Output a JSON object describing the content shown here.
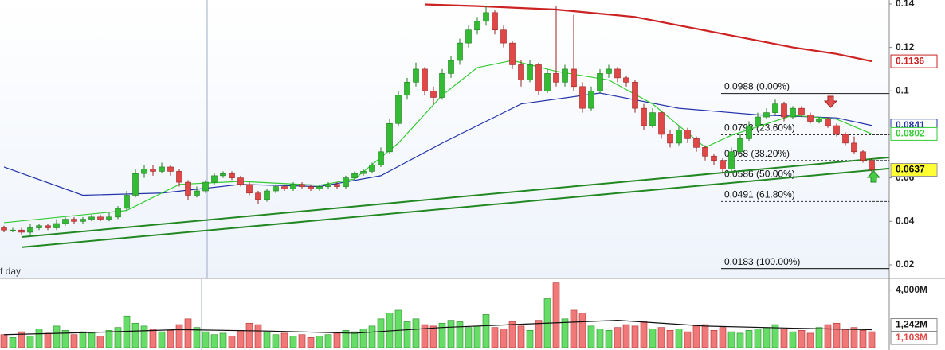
{
  "chart_data": {
    "type": "candlestick",
    "period_label": "f day",
    "up_color": "#33bb33",
    "down_color": "#e04848",
    "price_tag_color": "#ffff33",
    "ylim": [
      0.0145,
      0.1418
    ],
    "yticks": [
      0.02,
      0.04,
      0.06,
      0.08,
      0.1,
      0.12,
      0.14
    ],
    "candles": [
      [
        0.037,
        0.038,
        0.035,
        0.036
      ],
      [
        0.036,
        0.037,
        0.035,
        0.036
      ],
      [
        0.036,
        0.037,
        0.034,
        0.035
      ],
      [
        0.035,
        0.039,
        0.034,
        0.037
      ],
      [
        0.037,
        0.039,
        0.036,
        0.038
      ],
      [
        0.038,
        0.039,
        0.036,
        0.037
      ],
      [
        0.037,
        0.041,
        0.036,
        0.039
      ],
      [
        0.039,
        0.042,
        0.038,
        0.041
      ],
      [
        0.041,
        0.042,
        0.039,
        0.04
      ],
      [
        0.04,
        0.042,
        0.039,
        0.041
      ],
      [
        0.041,
        0.043,
        0.04,
        0.042
      ],
      [
        0.042,
        0.043,
        0.04,
        0.041
      ],
      [
        0.041,
        0.044,
        0.04,
        0.042
      ],
      [
        0.042,
        0.047,
        0.041,
        0.046
      ],
      [
        0.046,
        0.054,
        0.045,
        0.052
      ],
      [
        0.052,
        0.064,
        0.051,
        0.062
      ],
      [
        0.062,
        0.066,
        0.06,
        0.064
      ],
      [
        0.064,
        0.066,
        0.061,
        0.063
      ],
      [
        0.063,
        0.067,
        0.062,
        0.065
      ],
      [
        0.065,
        0.066,
        0.061,
        0.063
      ],
      [
        0.063,
        0.064,
        0.056,
        0.058
      ],
      [
        0.058,
        0.059,
        0.05,
        0.052
      ],
      [
        0.052,
        0.056,
        0.051,
        0.054
      ],
      [
        0.054,
        0.059,
        0.053,
        0.058
      ],
      [
        0.058,
        0.062,
        0.057,
        0.061
      ],
      [
        0.061,
        0.063,
        0.06,
        0.062
      ],
      [
        0.062,
        0.063,
        0.059,
        0.06
      ],
      [
        0.06,
        0.061,
        0.056,
        0.057
      ],
      [
        0.057,
        0.058,
        0.052,
        0.053
      ],
      [
        0.053,
        0.054,
        0.048,
        0.05
      ],
      [
        0.05,
        0.055,
        0.049,
        0.054
      ],
      [
        0.054,
        0.057,
        0.053,
        0.056
      ],
      [
        0.056,
        0.057,
        0.054,
        0.055
      ],
      [
        0.055,
        0.058,
        0.054,
        0.057
      ],
      [
        0.057,
        0.058,
        0.055,
        0.056
      ],
      [
        0.056,
        0.057,
        0.054,
        0.055
      ],
      [
        0.055,
        0.057,
        0.054,
        0.056
      ],
      [
        0.056,
        0.058,
        0.055,
        0.057
      ],
      [
        0.057,
        0.058,
        0.055,
        0.056
      ],
      [
        0.056,
        0.061,
        0.055,
        0.06
      ],
      [
        0.06,
        0.063,
        0.059,
        0.062
      ],
      [
        0.062,
        0.064,
        0.061,
        0.063
      ],
      [
        0.063,
        0.067,
        0.062,
        0.066
      ],
      [
        0.066,
        0.074,
        0.065,
        0.072
      ],
      [
        0.072,
        0.087,
        0.071,
        0.085
      ],
      [
        0.085,
        0.1,
        0.084,
        0.098
      ],
      [
        0.098,
        0.106,
        0.096,
        0.104
      ],
      [
        0.104,
        0.113,
        0.102,
        0.11
      ],
      [
        0.11,
        0.111,
        0.098,
        0.1
      ],
      [
        0.1,
        0.102,
        0.094,
        0.097
      ],
      [
        0.097,
        0.11,
        0.096,
        0.108
      ],
      [
        0.108,
        0.116,
        0.106,
        0.114
      ],
      [
        0.114,
        0.124,
        0.112,
        0.122
      ],
      [
        0.122,
        0.13,
        0.12,
        0.128
      ],
      [
        0.128,
        0.134,
        0.126,
        0.132
      ],
      [
        0.132,
        0.139,
        0.13,
        0.136
      ],
      [
        0.136,
        0.137,
        0.126,
        0.128
      ],
      [
        0.128,
        0.13,
        0.12,
        0.122
      ],
      [
        0.122,
        0.123,
        0.11,
        0.112
      ],
      [
        0.112,
        0.114,
        0.102,
        0.105
      ],
      [
        0.105,
        0.114,
        0.104,
        0.112
      ],
      [
        0.112,
        0.113,
        0.098,
        0.1
      ],
      [
        0.1,
        0.11,
        0.099,
        0.108
      ],
      [
        0.108,
        0.139,
        0.102,
        0.104
      ],
      [
        0.104,
        0.112,
        0.102,
        0.11
      ],
      [
        0.11,
        0.135,
        0.1,
        0.102
      ],
      [
        0.102,
        0.104,
        0.09,
        0.092
      ],
      [
        0.092,
        0.102,
        0.091,
        0.1
      ],
      [
        0.1,
        0.11,
        0.099,
        0.108
      ],
      [
        0.108,
        0.112,
        0.106,
        0.11
      ],
      [
        0.11,
        0.111,
        0.104,
        0.106
      ],
      [
        0.106,
        0.107,
        0.102,
        0.104
      ],
      [
        0.104,
        0.105,
        0.09,
        0.092
      ],
      [
        0.092,
        0.094,
        0.082,
        0.084
      ],
      [
        0.084,
        0.092,
        0.083,
        0.09
      ],
      [
        0.09,
        0.091,
        0.078,
        0.08
      ],
      [
        0.08,
        0.082,
        0.074,
        0.076
      ],
      [
        0.076,
        0.084,
        0.075,
        0.082
      ],
      [
        0.082,
        0.083,
        0.076,
        0.078
      ],
      [
        0.078,
        0.079,
        0.072,
        0.074
      ],
      [
        0.074,
        0.075,
        0.068,
        0.07
      ],
      [
        0.07,
        0.071,
        0.066,
        0.068
      ],
      [
        0.068,
        0.069,
        0.062,
        0.064
      ],
      [
        0.064,
        0.074,
        0.063,
        0.072
      ],
      [
        0.072,
        0.08,
        0.071,
        0.078
      ],
      [
        0.078,
        0.086,
        0.077,
        0.084
      ],
      [
        0.084,
        0.09,
        0.083,
        0.088
      ],
      [
        0.088,
        0.092,
        0.087,
        0.09
      ],
      [
        0.09,
        0.096,
        0.089,
        0.094
      ],
      [
        0.094,
        0.095,
        0.086,
        0.088
      ],
      [
        0.088,
        0.093,
        0.087,
        0.092
      ],
      [
        0.092,
        0.093,
        0.088,
        0.089
      ],
      [
        0.089,
        0.09,
        0.085,
        0.086
      ],
      [
        0.086,
        0.088,
        0.085,
        0.087
      ],
      [
        0.087,
        0.088,
        0.083,
        0.084
      ],
      [
        0.084,
        0.085,
        0.079,
        0.08
      ],
      [
        0.08,
        0.081,
        0.075,
        0.076
      ],
      [
        0.076,
        0.079,
        0.071,
        0.072
      ],
      [
        0.072,
        0.073,
        0.067,
        0.068
      ],
      [
        0.068,
        0.069,
        0.062,
        0.0637
      ]
    ],
    "series": [
      {
        "color": "#cc2222",
        "x": [
          48,
          54,
          63,
          72,
          81,
          90,
          95,
          99
        ],
        "values": [
          0.1398,
          0.139,
          0.1374,
          0.134,
          0.127,
          0.12,
          0.117,
          0.1136
        ]
      },
      {
        "color": "#2233aa",
        "x": [
          0,
          9,
          18,
          27,
          36,
          43,
          50,
          59,
          68,
          77,
          86,
          95,
          99
        ],
        "values": [
          0.065,
          0.052,
          0.053,
          0.057,
          0.056,
          0.061,
          0.076,
          0.094,
          0.099,
          0.092,
          0.089,
          0.0876,
          0.0841
        ]
      },
      {
        "color": "#33cc33",
        "x": [
          0,
          9,
          14,
          20,
          27,
          36,
          40,
          45,
          50,
          54,
          58,
          63,
          69,
          74,
          80,
          83,
          90,
          95,
          99
        ],
        "values": [
          0.0394,
          0.043,
          0.045,
          0.057,
          0.0584,
          0.0566,
          0.0595,
          0.076,
          0.098,
          0.1107,
          0.114,
          0.109,
          0.105,
          0.094,
          0.074,
          0.0796,
          0.0888,
          0.087,
          0.0802
        ]
      }
    ],
    "trendlines": [
      {
        "color": "#228822",
        "x": [
          2,
          101
        ],
        "values": [
          0.0328,
          0.0694
        ]
      },
      {
        "color": "#228822",
        "x": [
          2,
          101
        ],
        "values": [
          0.0281,
          0.0643
        ]
      }
    ],
    "fib_levels": [
      {
        "value": 0.0988,
        "label": "0.0988 (0.00%)"
      },
      {
        "value": 0.0798,
        "label": "0.0798 (23.60%)"
      },
      {
        "value": 0.068,
        "label": "0.068 (38.20%)"
      },
      {
        "value": 0.0586,
        "label": "0.0586 (50.00%)"
      },
      {
        "value": 0.0491,
        "label": "0.0491 (61.80%)"
      },
      {
        "value": 0.0183,
        "label": "0.0183 (100.00%)"
      }
    ],
    "volume": {
      "ylim": [
        0,
        4700
      ],
      "yticks": [
        {
          "value": 4000,
          "label": "4,000M"
        }
      ],
      "values": [
        900,
        700,
        1100,
        800,
        1300,
        1000,
        1500,
        1200,
        900,
        1100,
        1000,
        800,
        1200,
        1400,
        2200,
        1700,
        1500,
        1300,
        1100,
        1200,
        1600,
        2000,
        1400,
        1100,
        900,
        1000,
        800,
        1200,
        1700,
        1600,
        1100,
        900,
        1000,
        800,
        900,
        700,
        800,
        900,
        1000,
        1200,
        1100,
        1300,
        1500,
        2000,
        2400,
        2600,
        1800,
        2000,
        1600,
        1500,
        1700,
        1900,
        1800,
        1400,
        1500,
        2300,
        1400,
        1300,
        1800,
        1500,
        1200,
        1900,
        3400,
        4500,
        2000,
        2600,
        2400,
        1500,
        1300,
        1200,
        1400,
        1600,
        1500,
        1800,
        1300,
        1400,
        1200,
        1300,
        1100,
        1500,
        1600,
        1200,
        1400,
        1100,
        1000,
        1200,
        1300,
        1400,
        1600,
        1300,
        1100,
        1200,
        1000,
        1400,
        1600,
        1700,
        1300,
        1400,
        1200,
        1103
      ],
      "last_label": "1,103M",
      "average": {
        "color": "#111111",
        "x": [
          0,
          10,
          20,
          30,
          40,
          50,
          60,
          70,
          80,
          90,
          99
        ],
        "values": [
          900,
          1050,
          1250,
          1150,
          1000,
          1400,
          1650,
          1900,
          1500,
          1350,
          1242
        ],
        "last_label": "1,242M"
      }
    }
  }
}
